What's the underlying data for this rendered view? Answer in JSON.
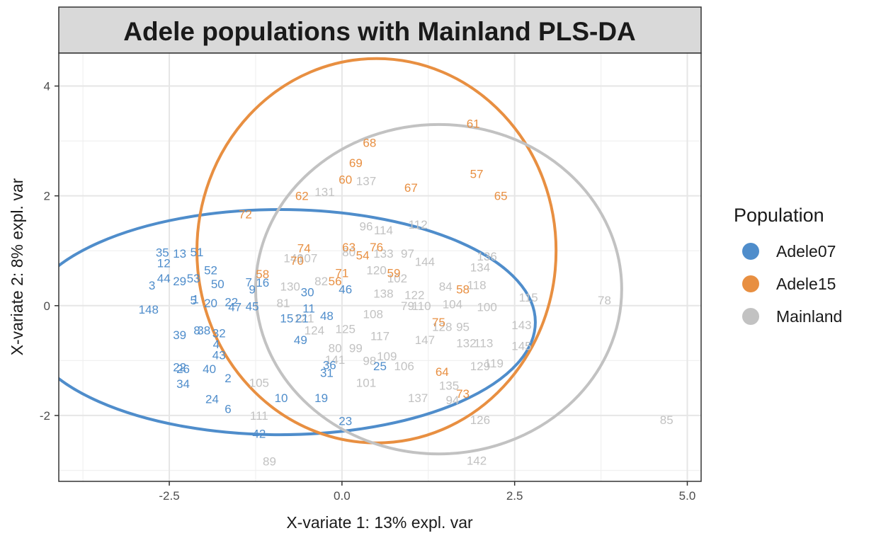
{
  "chart_data": {
    "type": "scatter",
    "title": "Adele populations with Mainland PLS-DA",
    "xlabel": "X-variate 1: 13% expl. var",
    "ylabel": "X-variate 2: 8% expl. var",
    "xlim": [
      -4.1,
      5.2
    ],
    "ylim": [
      -3.2,
      4.6
    ],
    "x_ticks": [
      -2.5,
      0.0,
      2.5,
      5.0
    ],
    "x_tick_labels": [
      "-2.5",
      "0.0",
      "2.5",
      "5.0"
    ],
    "y_ticks": [
      -2,
      0,
      2,
      4
    ],
    "y_tick_labels": [
      "-2",
      "0",
      "2",
      "4"
    ],
    "grid": true,
    "legend": {
      "title": "Population",
      "position": "right"
    },
    "series": [
      {
        "name": "Adele07",
        "color": "#4f8dcb",
        "ellipse": {
          "cx": -0.9,
          "cy": -0.3,
          "rx": 3.7,
          "ry": 2.05
        },
        "points": [
          {
            "label": "35",
            "x": -2.6,
            "y": 0.97
          },
          {
            "label": "13",
            "x": -2.35,
            "y": 0.95
          },
          {
            "label": "51",
            "x": -2.1,
            "y": 0.98
          },
          {
            "label": "12",
            "x": -2.58,
            "y": 0.78
          },
          {
            "label": "44",
            "x": -2.58,
            "y": 0.5
          },
          {
            "label": "29",
            "x": -2.35,
            "y": 0.45
          },
          {
            "label": "53",
            "x": -2.15,
            "y": 0.5
          },
          {
            "label": "52",
            "x": -1.9,
            "y": 0.65
          },
          {
            "label": "50",
            "x": -1.8,
            "y": 0.4
          },
          {
            "label": "3",
            "x": -2.75,
            "y": 0.37
          },
          {
            "label": "5",
            "x": -2.15,
            "y": 0.1
          },
          {
            "label": "1",
            "x": -2.12,
            "y": 0.12
          },
          {
            "label": "20",
            "x": -1.9,
            "y": 0.05
          },
          {
            "label": "22",
            "x": -1.6,
            "y": 0.07
          },
          {
            "label": "47",
            "x": -1.55,
            "y": -0.02
          },
          {
            "label": "45",
            "x": -1.3,
            "y": -0.01
          },
          {
            "label": "148",
            "x": -2.8,
            "y": -0.07
          },
          {
            "label": "7",
            "x": -1.35,
            "y": 0.43
          },
          {
            "label": "9",
            "x": -1.3,
            "y": 0.3
          },
          {
            "label": "16",
            "x": -1.15,
            "y": 0.42
          },
          {
            "label": "30",
            "x": -0.5,
            "y": 0.25
          },
          {
            "label": "46",
            "x": 0.05,
            "y": 0.3
          },
          {
            "label": "48",
            "x": -0.22,
            "y": -0.18
          },
          {
            "label": "11",
            "x": -0.48,
            "y": -0.05
          },
          {
            "label": "15",
            "x": -0.8,
            "y": -0.23
          },
          {
            "label": "21",
            "x": -0.58,
            "y": -0.23
          },
          {
            "label": "39",
            "x": -2.35,
            "y": -0.53
          },
          {
            "label": "38",
            "x": -2.0,
            "y": -0.45
          },
          {
            "label": "8",
            "x": -2.1,
            "y": -0.45
          },
          {
            "label": "32",
            "x": -1.78,
            "y": -0.5
          },
          {
            "label": "49",
            "x": -0.6,
            "y": -0.62
          },
          {
            "label": "4",
            "x": -1.82,
            "y": -0.7
          },
          {
            "label": "43",
            "x": -1.78,
            "y": -0.9
          },
          {
            "label": "22",
            "x": -2.35,
            "y": -1.12
          },
          {
            "label": "26",
            "x": -2.3,
            "y": -1.15
          },
          {
            "label": "40",
            "x": -1.92,
            "y": -1.15
          },
          {
            "label": "34",
            "x": -2.3,
            "y": -1.42
          },
          {
            "label": "2",
            "x": -1.65,
            "y": -1.32
          },
          {
            "label": "24",
            "x": -1.88,
            "y": -1.7
          },
          {
            "label": "6",
            "x": -1.65,
            "y": -1.88
          },
          {
            "label": "10",
            "x": -0.88,
            "y": -1.68
          },
          {
            "label": "19",
            "x": -0.3,
            "y": -1.68
          },
          {
            "label": "42",
            "x": -1.2,
            "y": -2.33
          },
          {
            "label": "23",
            "x": 0.05,
            "y": -2.1
          },
          {
            "label": "36",
            "x": -0.18,
            "y": -1.08
          },
          {
            "label": "31",
            "x": -0.22,
            "y": -1.22
          },
          {
            "label": "25",
            "x": 0.55,
            "y": -1.1
          }
        ]
      },
      {
        "name": "Adele15",
        "color": "#e88f41",
        "ellipse": {
          "cx": 0.5,
          "cy": 1.0,
          "rx": 2.6,
          "ry": 3.5
        },
        "points": [
          {
            "label": "61",
            "x": 1.9,
            "y": 3.32
          },
          {
            "label": "68",
            "x": 0.4,
            "y": 2.97
          },
          {
            "label": "69",
            "x": 0.2,
            "y": 2.6
          },
          {
            "label": "57",
            "x": 1.95,
            "y": 2.4
          },
          {
            "label": "60",
            "x": 0.05,
            "y": 2.3
          },
          {
            "label": "67",
            "x": 1.0,
            "y": 2.15
          },
          {
            "label": "62",
            "x": -0.58,
            "y": 2.0
          },
          {
            "label": "65",
            "x": 2.3,
            "y": 2.0
          },
          {
            "label": "72",
            "x": -1.4,
            "y": 1.67
          },
          {
            "label": "74",
            "x": -0.55,
            "y": 1.05
          },
          {
            "label": "63",
            "x": 0.1,
            "y": 1.07
          },
          {
            "label": "76",
            "x": 0.5,
            "y": 1.07
          },
          {
            "label": "54",
            "x": 0.3,
            "y": 0.92
          },
          {
            "label": "70",
            "x": -0.65,
            "y": 0.82
          },
          {
            "label": "71",
            "x": 0.0,
            "y": 0.6
          },
          {
            "label": "58",
            "x": -1.15,
            "y": 0.58
          },
          {
            "label": "56",
            "x": -0.1,
            "y": 0.45
          },
          {
            "label": "59",
            "x": 0.75,
            "y": 0.6
          },
          {
            "label": "58",
            "x": 1.75,
            "y": 0.3
          },
          {
            "label": "75",
            "x": 1.4,
            "y": -0.3
          },
          {
            "label": "64",
            "x": 1.45,
            "y": -1.2
          },
          {
            "label": "73",
            "x": 1.75,
            "y": -1.6
          }
        ]
      },
      {
        "name": "Mainland",
        "color": "#c2c2c2",
        "ellipse": {
          "cx": 1.4,
          "cy": 0.3,
          "rx": 2.65,
          "ry": 3.0
        },
        "points": [
          {
            "label": "137",
            "x": 0.35,
            "y": 2.27
          },
          {
            "label": "131",
            "x": -0.25,
            "y": 2.07
          },
          {
            "label": "96",
            "x": 0.35,
            "y": 1.45
          },
          {
            "label": "114",
            "x": 0.6,
            "y": 1.38
          },
          {
            "label": "112",
            "x": 1.1,
            "y": 1.48
          },
          {
            "label": "140",
            "x": -0.7,
            "y": 0.87
          },
          {
            "label": "107",
            "x": -0.5,
            "y": 0.87
          },
          {
            "label": "80",
            "x": 0.1,
            "y": 0.98
          },
          {
            "label": "133",
            "x": 0.6,
            "y": 0.95
          },
          {
            "label": "97",
            "x": 0.95,
            "y": 0.95
          },
          {
            "label": "144",
            "x": 1.2,
            "y": 0.8
          },
          {
            "label": "136",
            "x": 2.1,
            "y": 0.9
          },
          {
            "label": "134",
            "x": 2.0,
            "y": 0.7
          },
          {
            "label": "120",
            "x": 0.5,
            "y": 0.65
          },
          {
            "label": "82",
            "x": -0.3,
            "y": 0.45
          },
          {
            "label": "130",
            "x": -0.75,
            "y": 0.35
          },
          {
            "label": "102",
            "x": 0.8,
            "y": 0.5
          },
          {
            "label": "84",
            "x": 1.5,
            "y": 0.35
          },
          {
            "label": "118",
            "x": 1.95,
            "y": 0.38
          },
          {
            "label": "138",
            "x": 0.6,
            "y": 0.22
          },
          {
            "label": "122",
            "x": 1.05,
            "y": 0.2
          },
          {
            "label": "104",
            "x": 1.6,
            "y": 0.03
          },
          {
            "label": "100",
            "x": 2.1,
            "y": -0.02
          },
          {
            "label": "115",
            "x": 2.7,
            "y": 0.15
          },
          {
            "label": "78",
            "x": 3.8,
            "y": 0.1
          },
          {
            "label": "81",
            "x": -0.85,
            "y": 0.05
          },
          {
            "label": "79",
            "x": 0.95,
            "y": 0.0
          },
          {
            "label": "110",
            "x": 1.15,
            "y": 0.0
          },
          {
            "label": "108",
            "x": 0.45,
            "y": -0.15
          },
          {
            "label": "121",
            "x": -0.55,
            "y": -0.23
          },
          {
            "label": "124",
            "x": -0.4,
            "y": -0.45
          },
          {
            "label": "125",
            "x": 0.05,
            "y": -0.42
          },
          {
            "label": "117",
            "x": 0.55,
            "y": -0.55
          },
          {
            "label": "128",
            "x": 1.45,
            "y": -0.38
          },
          {
            "label": "95",
            "x": 1.75,
            "y": -0.38
          },
          {
            "label": "143",
            "x": 2.6,
            "y": -0.35
          },
          {
            "label": "147",
            "x": 1.2,
            "y": -0.62
          },
          {
            "label": "132",
            "x": 1.8,
            "y": -0.68
          },
          {
            "label": "113",
            "x": 2.05,
            "y": -0.68
          },
          {
            "label": "145",
            "x": 2.6,
            "y": -0.73
          },
          {
            "label": "80",
            "x": -0.1,
            "y": -0.77
          },
          {
            "label": "99",
            "x": 0.2,
            "y": -0.77
          },
          {
            "label": "141",
            "x": -0.1,
            "y": -0.98
          },
          {
            "label": "98",
            "x": 0.4,
            "y": -1.0
          },
          {
            "label": "109",
            "x": 0.65,
            "y": -0.92
          },
          {
            "label": "106",
            "x": 0.9,
            "y": -1.1
          },
          {
            "label": "129",
            "x": 2.0,
            "y": -1.1
          },
          {
            "label": "119",
            "x": 2.2,
            "y": -1.05
          },
          {
            "label": "105",
            "x": -1.2,
            "y": -1.4
          },
          {
            "label": "101",
            "x": 0.35,
            "y": -1.4
          },
          {
            "label": "135",
            "x": 1.55,
            "y": -1.45
          },
          {
            "label": "137",
            "x": 1.1,
            "y": -1.68
          },
          {
            "label": "94",
            "x": 1.6,
            "y": -1.72
          },
          {
            "label": "111",
            "x": -1.2,
            "y": -2.0
          },
          {
            "label": "126",
            "x": 2.0,
            "y": -2.08
          },
          {
            "label": "142",
            "x": 1.95,
            "y": -2.82
          },
          {
            "label": "89",
            "x": -1.05,
            "y": -2.83
          },
          {
            "label": "85",
            "x": 4.7,
            "y": -2.08
          }
        ]
      }
    ]
  }
}
